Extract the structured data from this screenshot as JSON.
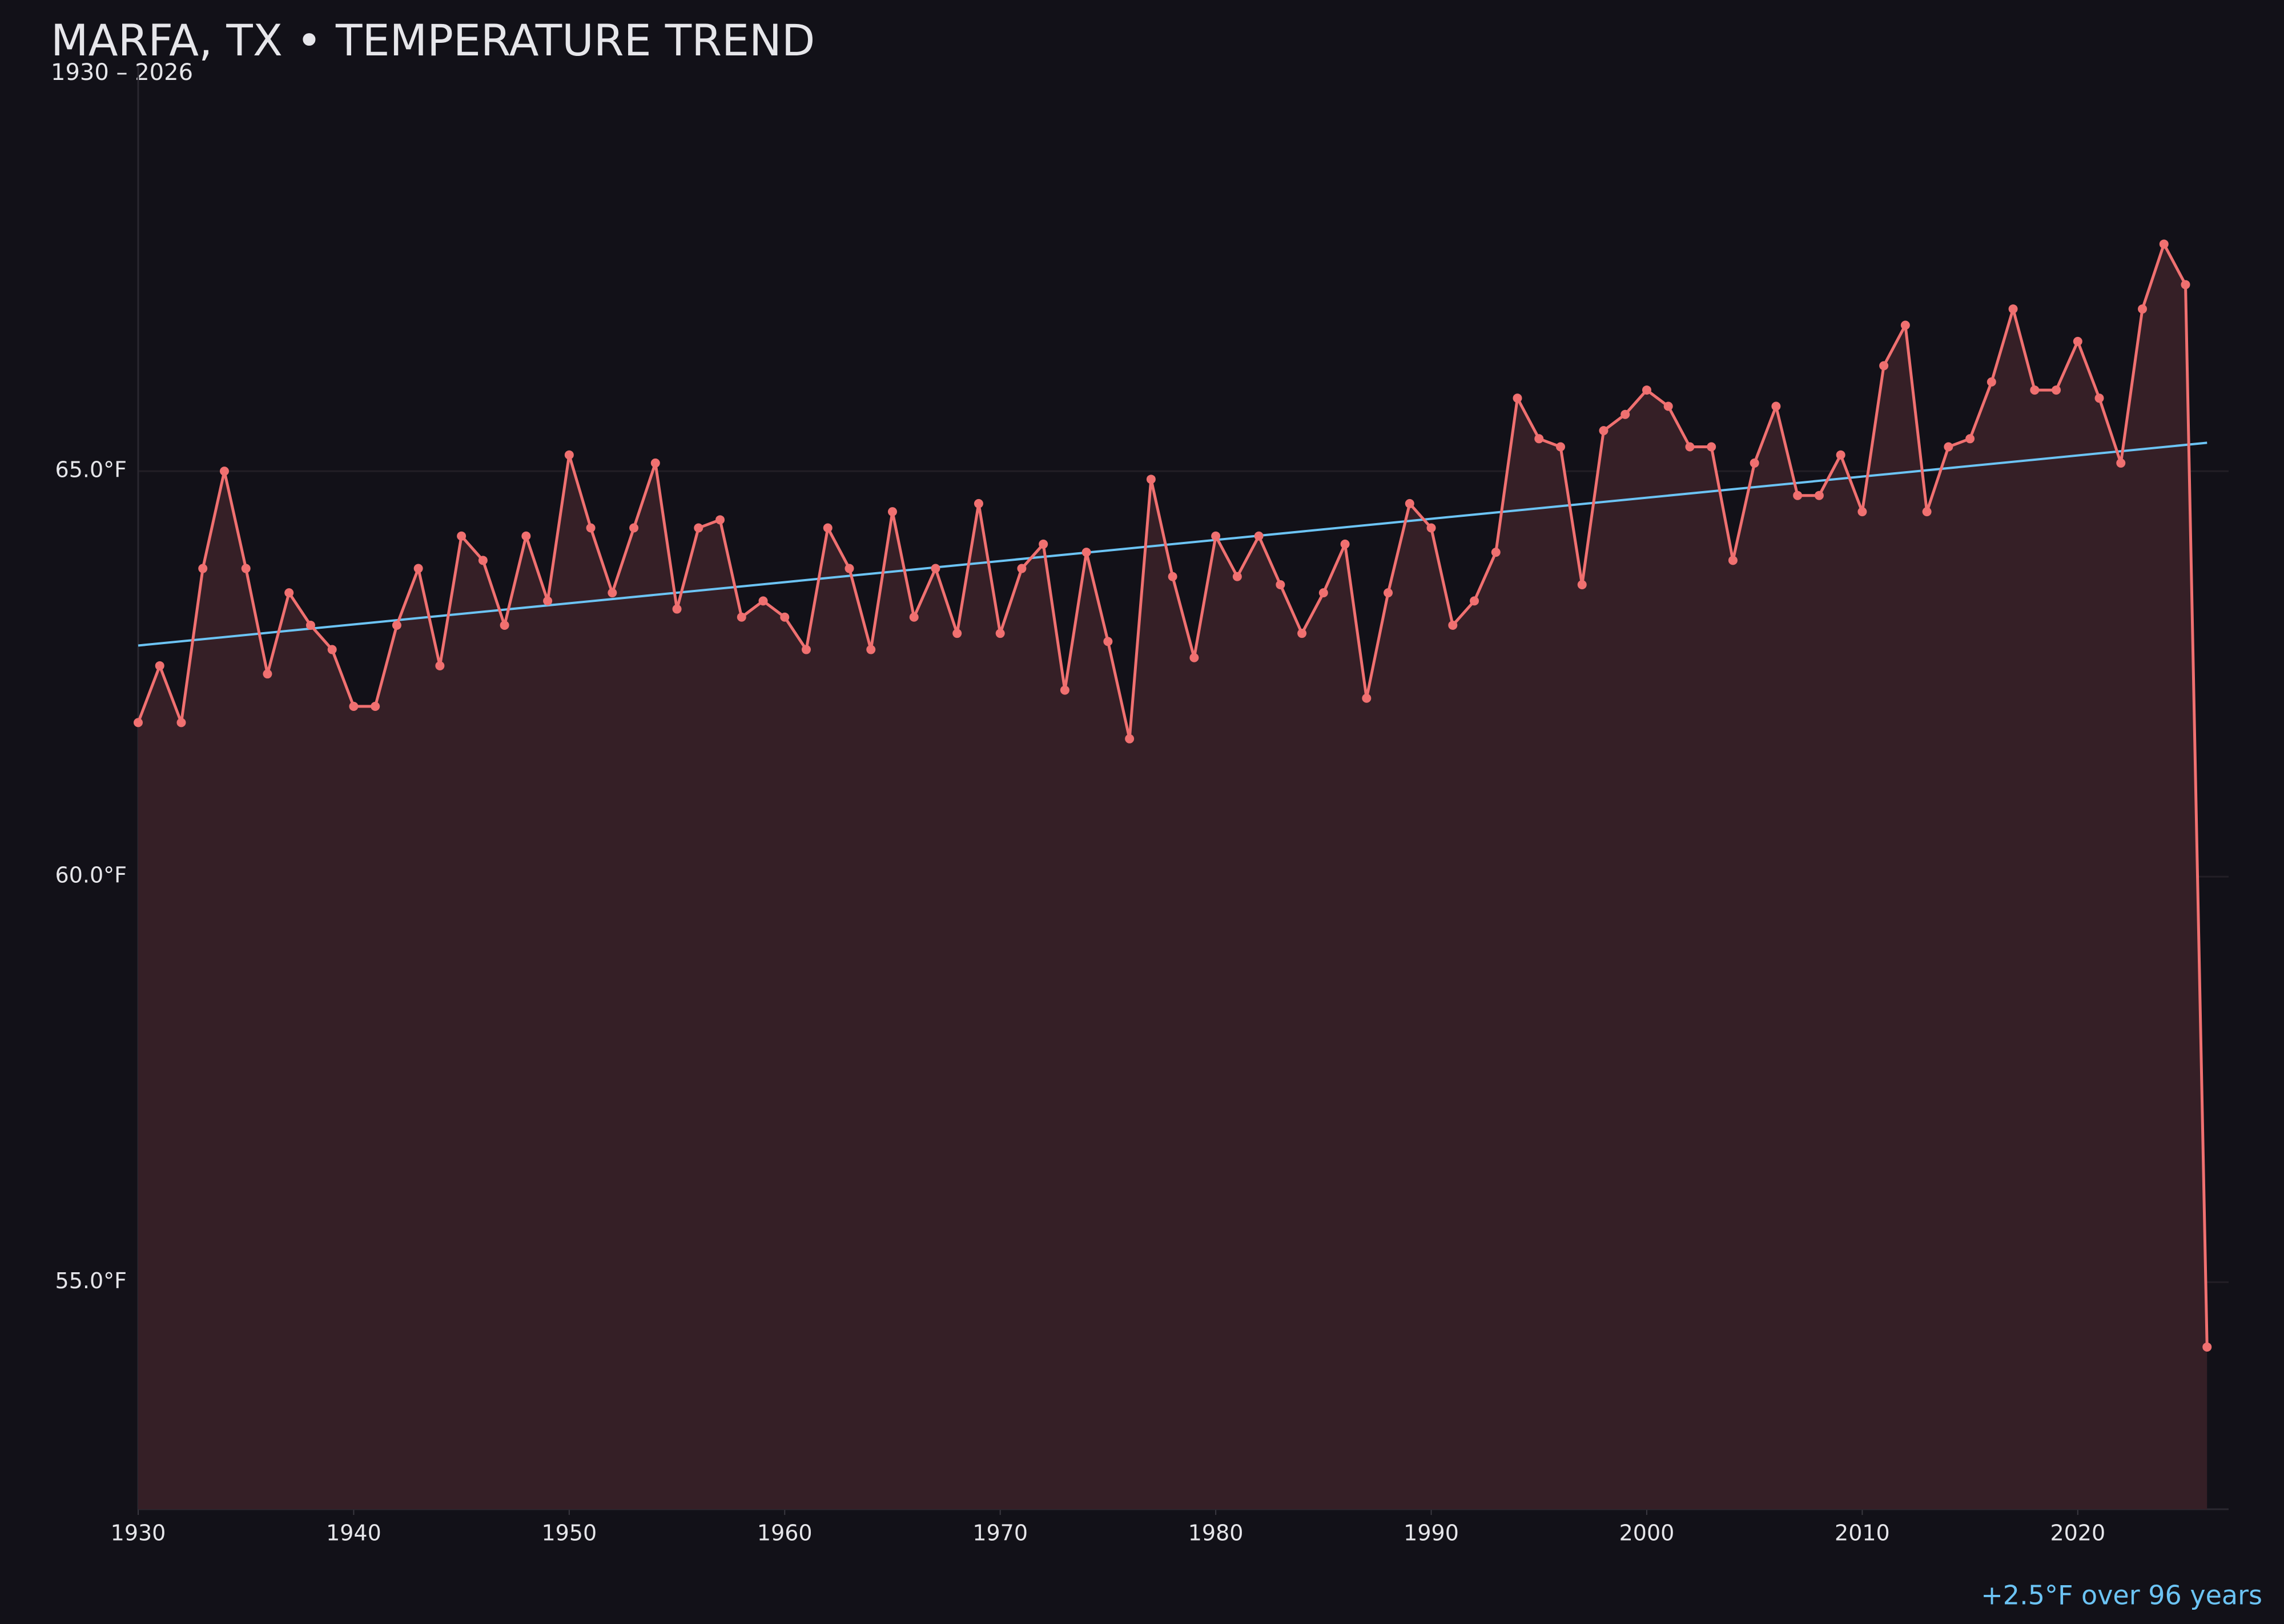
{
  "chart_data": {
    "type": "line",
    "title": "MARFA, TX • TEMPERATURE TREND",
    "subtitle": "1930 – 2026",
    "annotation": "+2.5°F over 96 years",
    "x": [
      1930,
      1931,
      1932,
      1933,
      1934,
      1935,
      1936,
      1937,
      1938,
      1939,
      1940,
      1941,
      1942,
      1943,
      1944,
      1945,
      1946,
      1947,
      1948,
      1949,
      1950,
      1951,
      1952,
      1953,
      1954,
      1955,
      1956,
      1957,
      1958,
      1959,
      1960,
      1961,
      1962,
      1963,
      1964,
      1965,
      1966,
      1967,
      1968,
      1969,
      1970,
      1971,
      1972,
      1973,
      1974,
      1975,
      1976,
      1977,
      1978,
      1979,
      1980,
      1981,
      1982,
      1983,
      1984,
      1985,
      1986,
      1987,
      1988,
      1989,
      1990,
      1991,
      1992,
      1993,
      1994,
      1995,
      1996,
      1997,
      1998,
      1999,
      2000,
      2001,
      2002,
      2003,
      2004,
      2005,
      2006,
      2007,
      2008,
      2009,
      2010,
      2011,
      2012,
      2013,
      2014,
      2015,
      2016,
      2017,
      2018,
      2019,
      2020,
      2021,
      2022,
      2023,
      2024,
      2025,
      2026
    ],
    "values": [
      61.9,
      62.6,
      61.9,
      63.8,
      65.0,
      63.8,
      62.5,
      63.5,
      63.1,
      62.8,
      62.1,
      62.1,
      63.1,
      63.8,
      62.6,
      64.2,
      63.9,
      63.1,
      64.2,
      63.4,
      65.2,
      64.3,
      63.5,
      64.3,
      65.1,
      63.3,
      64.3,
      64.4,
      63.2,
      63.4,
      63.2,
      62.8,
      64.3,
      63.8,
      62.8,
      64.5,
      63.2,
      63.8,
      63.0,
      64.6,
      63.0,
      63.8,
      64.1,
      62.3,
      64.0,
      62.9,
      61.7,
      64.9,
      63.7,
      62.7,
      64.2,
      63.7,
      64.2,
      63.6,
      63.0,
      63.5,
      64.1,
      62.2,
      63.5,
      64.6,
      64.3,
      63.1,
      63.4,
      64.0,
      65.9,
      65.4,
      65.3,
      63.6,
      65.5,
      65.7,
      66.0,
      65.8,
      65.3,
      65.3,
      63.9,
      65.1,
      65.8,
      64.7,
      64.7,
      65.2,
      64.5,
      66.3,
      66.8,
      64.5,
      65.3,
      65.4,
      66.1,
      67.0,
      66.0,
      66.0,
      66.6,
      65.9,
      65.1,
      67.0,
      67.8,
      67.3,
      54.2
    ],
    "color": "#f07070",
    "area_color": "#351f26",
    "trend": {
      "x": [
        1930,
        2026
      ],
      "values": [
        62.85,
        65.35
      ],
      "color": "#6cc4f5"
    },
    "xlim": [
      1930,
      2027
    ],
    "ylim": [
      52.2,
      70
    ],
    "xticks": [
      1930,
      1940,
      1950,
      1960,
      1970,
      1980,
      1990,
      2000,
      2010,
      2020
    ],
    "yticks": [
      {
        "value": 55,
        "label": "55.0°F"
      },
      {
        "value": 60,
        "label": "60.0°F"
      },
      {
        "value": 65,
        "label": "65.0°F"
      }
    ],
    "grid": true
  }
}
